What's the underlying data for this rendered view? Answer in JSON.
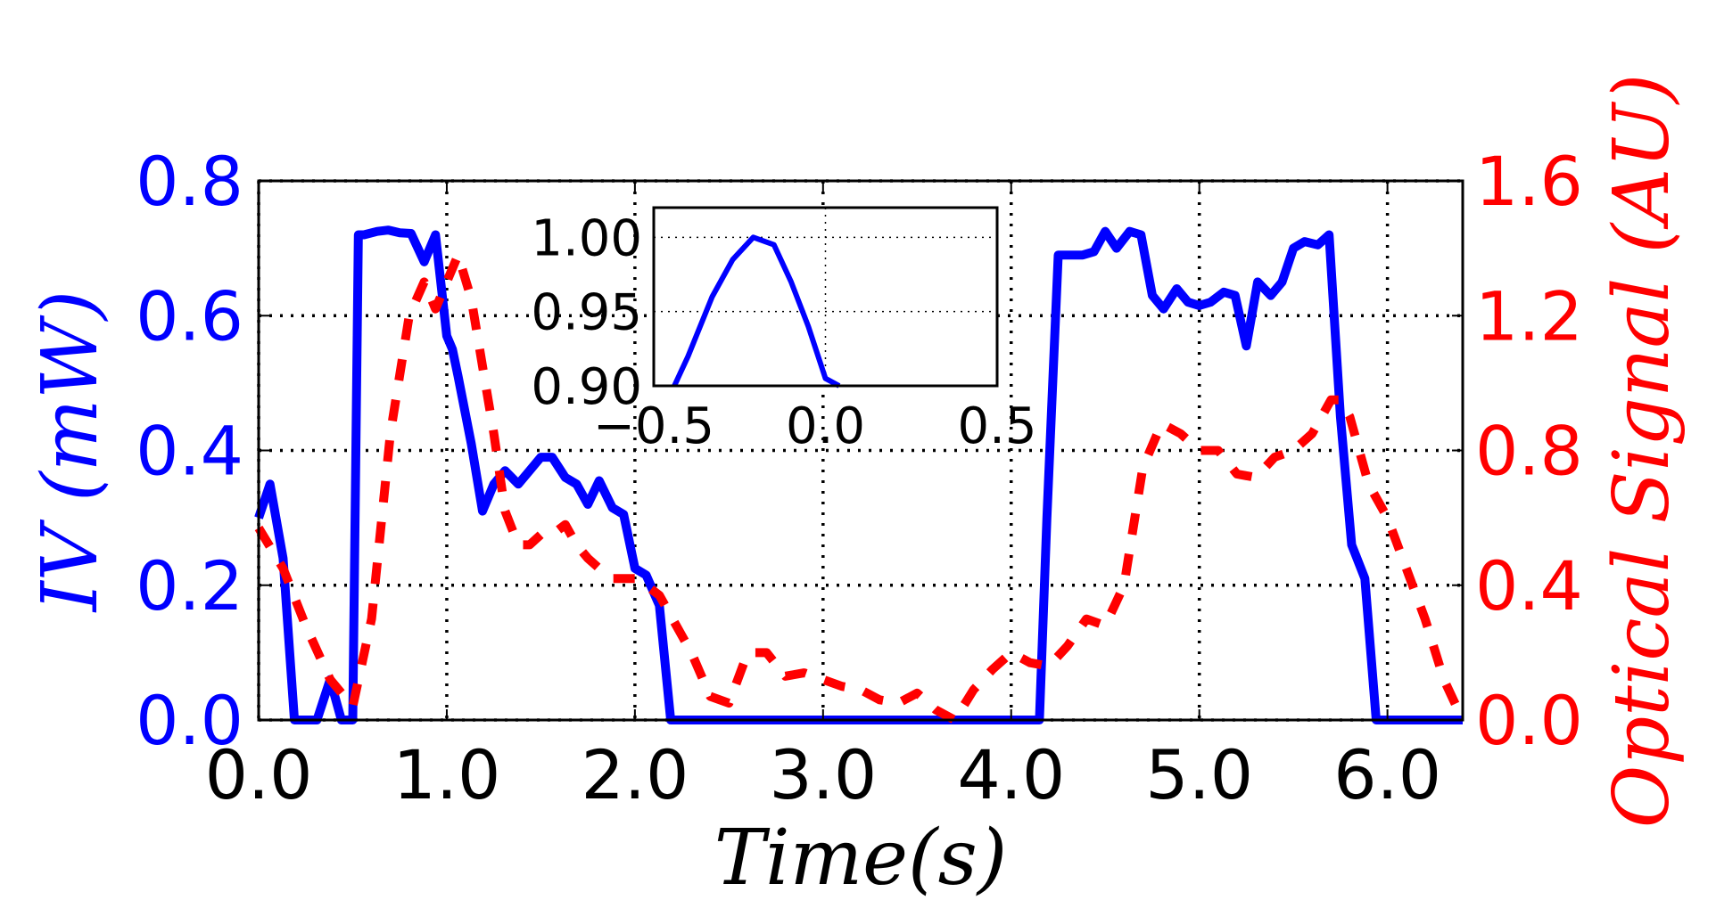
{
  "colors": {
    "left_axis": "#0000ff",
    "right_axis": "#ff0000",
    "axis": "#000000"
  },
  "chart_data": {
    "type": "line",
    "title": "",
    "xlabel": "Time(s)",
    "ylabel": "IV (mW)",
    "ylabel_right": "Optical Signal (AU)",
    "xlim": [
      0.0,
      6.4
    ],
    "ylim": [
      0.0,
      0.8
    ],
    "ylim_right": [
      0.0,
      1.6
    ],
    "grid": true,
    "xticks": [
      0.0,
      1.0,
      2.0,
      3.0,
      4.0,
      5.0,
      6.0
    ],
    "xtick_labels": [
      "0.0",
      "1.0",
      "2.0",
      "3.0",
      "4.0",
      "5.0",
      "6.0"
    ],
    "yticks": [
      0.0,
      0.2,
      0.4,
      0.6,
      0.8
    ],
    "ytick_labels": [
      "0.0",
      "0.2",
      "0.4",
      "0.6",
      "0.8"
    ],
    "yticks_right": [
      0.0,
      0.4,
      0.8,
      1.2,
      1.6
    ],
    "ytick_labels_right": [
      "0.0",
      "0.4",
      "0.8",
      "1.2",
      "1.6"
    ],
    "series": [
      {
        "name": "IV",
        "axis": "left",
        "color": "#0000ff",
        "style": "solid",
        "x": [
          0.0,
          0.06,
          0.13,
          0.19,
          0.25,
          0.31,
          0.38,
          0.44,
          0.5,
          0.53,
          0.56,
          0.63,
          0.69,
          0.75,
          0.81,
          0.88,
          0.94,
          1.0,
          1.03,
          1.06,
          1.13,
          1.19,
          1.25,
          1.31,
          1.38,
          1.44,
          1.5,
          1.56,
          1.63,
          1.69,
          1.75,
          1.81,
          1.88,
          1.94,
          2.0,
          2.06,
          2.13,
          2.19,
          2.25,
          2.31,
          2.4,
          2.6,
          2.8,
          3.0,
          3.2,
          3.4,
          3.6,
          3.8,
          4.0,
          4.1,
          4.15,
          4.19,
          4.25,
          4.31,
          4.38,
          4.44,
          4.5,
          4.56,
          4.63,
          4.69,
          4.75,
          4.81,
          4.88,
          4.94,
          5.0,
          5.06,
          5.13,
          5.19,
          5.25,
          5.31,
          5.38,
          5.44,
          5.5,
          5.56,
          5.63,
          5.69,
          5.75,
          5.81,
          5.88,
          5.94,
          6.0,
          6.06,
          6.2,
          6.4
        ],
        "values": [
          0.3,
          0.35,
          0.24,
          0.0,
          0.0,
          0.0,
          0.06,
          0.0,
          0.0,
          0.72,
          0.72,
          0.725,
          0.727,
          0.723,
          0.722,
          0.68,
          0.72,
          0.57,
          0.55,
          0.51,
          0.41,
          0.31,
          0.35,
          0.37,
          0.35,
          0.37,
          0.39,
          0.39,
          0.36,
          0.35,
          0.32,
          0.355,
          0.315,
          0.305,
          0.225,
          0.215,
          0.17,
          0.0,
          0.0,
          0.0,
          0.0,
          0.0,
          0.0,
          0.0,
          0.0,
          0.0,
          0.0,
          0.0,
          0.0,
          0.0,
          0.0,
          0.3,
          0.69,
          0.69,
          0.69,
          0.695,
          0.725,
          0.7,
          0.725,
          0.72,
          0.63,
          0.61,
          0.64,
          0.62,
          0.615,
          0.62,
          0.635,
          0.63,
          0.555,
          0.65,
          0.63,
          0.65,
          0.7,
          0.71,
          0.705,
          0.72,
          0.45,
          0.26,
          0.21,
          0.0,
          0.0,
          0.0,
          0.0,
          0.0
        ]
      },
      {
        "name": "Optical Signal",
        "axis": "right",
        "color": "#ff0000",
        "style": "dashed",
        "x": [
          0.0,
          0.13,
          0.25,
          0.38,
          0.5,
          0.6,
          0.7,
          0.8,
          0.88,
          0.94,
          1.0,
          1.06,
          1.13,
          1.19,
          1.25,
          1.31,
          1.38,
          1.44,
          1.5,
          1.56,
          1.63,
          1.69,
          1.75,
          1.81,
          1.88,
          1.94,
          2.0,
          2.06,
          2.13,
          2.2,
          2.3,
          2.4,
          2.5,
          2.6,
          2.7,
          2.8,
          2.9,
          3.0,
          3.1,
          3.2,
          3.3,
          3.4,
          3.5,
          3.6,
          3.7,
          3.8,
          3.9,
          4.0,
          4.1,
          4.2,
          4.3,
          4.4,
          4.5,
          4.6,
          4.7,
          4.8,
          4.9,
          5.0,
          5.1,
          5.2,
          5.3,
          5.4,
          5.5,
          5.6,
          5.7,
          5.75,
          5.8,
          5.9,
          6.0,
          6.1,
          6.2,
          6.3,
          6.4
        ],
        "values": [
          0.57,
          0.45,
          0.28,
          0.12,
          0.04,
          0.3,
          0.85,
          1.2,
          1.3,
          1.22,
          1.3,
          1.38,
          1.25,
          1.05,
          0.85,
          0.62,
          0.52,
          0.52,
          0.55,
          0.55,
          0.58,
          0.52,
          0.48,
          0.45,
          0.42,
          0.42,
          0.42,
          0.4,
          0.37,
          0.3,
          0.2,
          0.07,
          0.05,
          0.2,
          0.2,
          0.13,
          0.14,
          0.12,
          0.1,
          0.09,
          0.06,
          0.05,
          0.08,
          0.03,
          0.0,
          0.09,
          0.15,
          0.2,
          0.17,
          0.16,
          0.22,
          0.3,
          0.28,
          0.4,
          0.75,
          0.88,
          0.85,
          0.8,
          0.8,
          0.73,
          0.72,
          0.78,
          0.8,
          0.85,
          0.95,
          0.95,
          0.9,
          0.7,
          0.6,
          0.45,
          0.3,
          0.12,
          0.0
        ]
      }
    ],
    "inset": {
      "type": "line",
      "xlim": [
        -0.5,
        0.5
      ],
      "ylim": [
        0.9,
        1.02
      ],
      "xticks": [
        -0.5,
        0.0,
        0.5
      ],
      "xtick_labels": [
        "−0.5",
        "0.0",
        "0.5"
      ],
      "yticks": [
        0.9,
        0.95,
        1.0
      ],
      "ytick_labels": [
        "0.90",
        "0.95",
        "1.00"
      ],
      "grid": true,
      "series": [
        {
          "name": "inset",
          "color": "#0000ff",
          "x": [
            -0.44,
            -0.4,
            -0.33,
            -0.27,
            -0.21,
            -0.15,
            -0.1,
            -0.05,
            0.0,
            0.04
          ],
          "values": [
            0.9,
            0.92,
            0.96,
            0.985,
            1.0,
            0.995,
            0.97,
            0.94,
            0.905,
            0.9
          ]
        }
      ]
    }
  }
}
